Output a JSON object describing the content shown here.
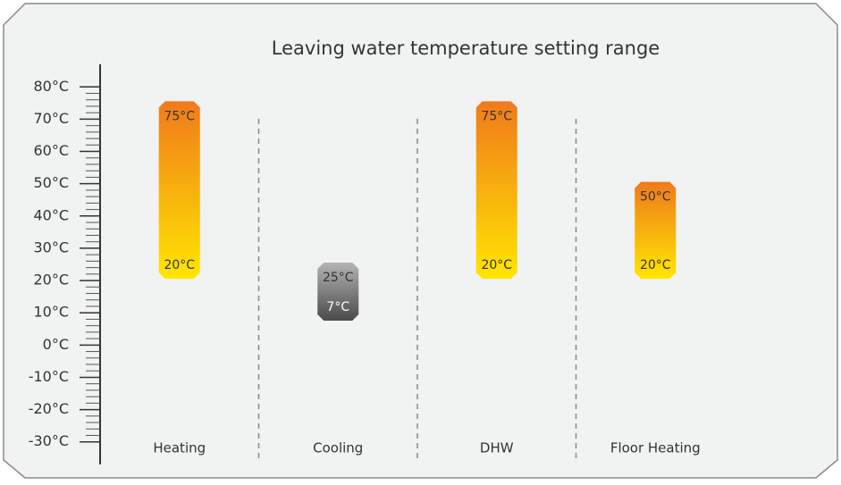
{
  "chart_data": {
    "type": "range",
    "title": "Leaving water temperature setting range",
    "categories": [
      "Heating",
      "Cooling",
      "DHW",
      "Floor Heating"
    ],
    "low": [
      20,
      7,
      20,
      20
    ],
    "high": [
      75,
      25,
      75,
      50
    ],
    "low_labels": [
      "20°C",
      "7°C",
      "20°C",
      "20°C"
    ],
    "high_labels": [
      "75°C",
      "25°C",
      "75°C",
      "50°C"
    ],
    "colors": [
      [
        "#f07a1c",
        "#ffe600"
      ],
      [
        "#b4b4b4",
        "#4a4a4a"
      ],
      [
        "#f07a1c",
        "#ffe600"
      ],
      [
        "#f07a1c",
        "#ffe600"
      ]
    ],
    "ylim": [
      -37,
      87
    ],
    "yticks": [
      {
        "value": -30,
        "label": "-30°C"
      },
      {
        "value": -20,
        "label": "-20°C"
      },
      {
        "value": -10,
        "label": "-10°C"
      },
      {
        "value": 0,
        "label": "0°C"
      },
      {
        "value": 10,
        "label": "10°C"
      },
      {
        "value": 20,
        "label": "20°C"
      },
      {
        "value": 30,
        "label": "30°C"
      },
      {
        "value": 40,
        "label": "40°C"
      },
      {
        "value": 50,
        "label": "50°C"
      },
      {
        "value": 60,
        "label": "60°C"
      },
      {
        "value": 70,
        "label": "70°C"
      },
      {
        "value": 80,
        "label": "80°C"
      }
    ],
    "minor_yticks": [
      -28,
      -26,
      -24,
      -22,
      -18,
      -16,
      -14,
      -12,
      -8,
      -6,
      -4,
      -2,
      2,
      4,
      6,
      8,
      12,
      14,
      16,
      18,
      22,
      24,
      26,
      28,
      32,
      34,
      36,
      38,
      42,
      44,
      46,
      48,
      52,
      54,
      56,
      58,
      62,
      64,
      66,
      68,
      72,
      74,
      76,
      78
    ]
  }
}
